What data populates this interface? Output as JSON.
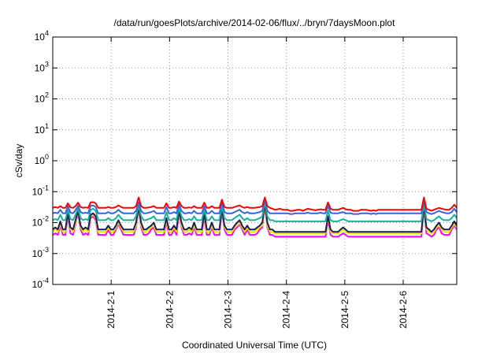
{
  "chart_data": {
    "type": "line",
    "title": "/data/run/goesPlots/archive/2014-02-06/flux/../bryn/7daysMoon.plot",
    "xlabel": "Coordinated Universal Time (UTC)",
    "ylabel": "cSv/day",
    "yscale": "log",
    "ylim": [
      0.0001,
      10000
    ],
    "xlim": [
      "2014-01-31T00:00",
      "2014-02-06T22:00"
    ],
    "grid": true,
    "y_ticks": [
      {
        "base": "10",
        "exp": "-4",
        "value": 0.0001
      },
      {
        "base": "10",
        "exp": "-3",
        "value": 0.001
      },
      {
        "base": "10",
        "exp": "-2",
        "value": 0.01
      },
      {
        "base": "10",
        "exp": "-1",
        "value": 0.1
      },
      {
        "base": "10",
        "exp": "0",
        "value": 1
      },
      {
        "base": "10",
        "exp": "1",
        "value": 10
      },
      {
        "base": "10",
        "exp": "2",
        "value": 100
      },
      {
        "base": "10",
        "exp": "3",
        "value": 1000
      },
      {
        "base": "10",
        "exp": "4",
        "value": 10000
      }
    ],
    "x_ticks": [
      {
        "label": "2014-2-1",
        "value": "2014-02-01T00:00"
      },
      {
        "label": "2014-2-2",
        "value": "2014-02-02T00:00"
      },
      {
        "label": "2014-2-3",
        "value": "2014-02-03T00:00"
      },
      {
        "label": "2014-2-4",
        "value": "2014-02-04T00:00"
      },
      {
        "label": "2014-2-5",
        "value": "2014-02-05T00:00"
      },
      {
        "label": "2014-2-6",
        "value": "2014-02-06T00:00"
      }
    ],
    "series": [
      {
        "color": "#ff0000",
        "values": [
          0.03,
          0.032,
          0.03,
          0.034,
          0.03,
          0.03,
          0.042,
          0.031,
          0.03,
          0.034,
          0.044,
          0.032,
          0.03,
          0.031,
          0.03,
          0.045,
          0.046,
          0.042,
          0.03,
          0.03,
          0.03,
          0.03,
          0.032,
          0.03,
          0.03,
          0.032,
          0.036,
          0.032,
          0.03,
          0.03,
          0.03,
          0.03,
          0.03,
          0.034,
          0.065,
          0.034,
          0.03,
          0.03,
          0.031,
          0.032,
          0.034,
          0.03,
          0.03,
          0.03,
          0.03,
          0.042,
          0.03,
          0.03,
          0.032,
          0.03,
          0.048,
          0.034,
          0.03,
          0.03,
          0.031,
          0.03,
          0.034,
          0.03,
          0.03,
          0.03,
          0.044,
          0.03,
          0.03,
          0.034,
          0.03,
          0.03,
          0.03,
          0.055,
          0.032,
          0.03,
          0.03,
          0.03,
          0.032,
          0.034,
          0.036,
          0.032,
          0.03,
          0.032,
          0.03,
          0.03,
          0.03,
          0.031,
          0.032,
          0.034,
          0.065,
          0.034,
          0.03,
          0.028,
          0.026,
          0.027,
          0.028,
          0.026,
          0.026,
          0.026,
          0.024,
          0.024,
          0.025,
          0.026,
          0.026,
          0.024,
          0.026,
          0.028,
          0.027,
          0.026,
          0.025,
          0.026,
          0.027,
          0.026,
          0.026,
          0.045,
          0.028,
          0.026,
          0.026,
          0.026,
          0.028,
          0.03,
          0.027,
          0.026,
          0.026,
          0.024,
          0.024,
          0.024,
          0.026,
          0.026,
          0.026,
          0.025,
          0.024,
          0.025,
          0.024,
          0.026,
          0.026,
          0.026,
          0.026,
          0.026,
          0.026,
          0.026,
          0.026,
          0.026,
          0.026,
          0.026,
          0.026,
          0.026,
          0.026,
          0.026,
          0.026,
          0.026,
          0.026,
          0.065,
          0.028,
          0.026,
          0.024,
          0.026,
          0.028,
          0.03,
          0.028,
          0.027,
          0.026,
          0.026,
          0.03,
          0.038,
          0.03
        ]
      },
      {
        "color": "#3a64d8",
        "values": [
          0.02,
          0.021,
          0.02,
          0.026,
          0.02,
          0.02,
          0.034,
          0.021,
          0.02,
          0.025,
          0.035,
          0.022,
          0.02,
          0.021,
          0.02,
          0.035,
          0.036,
          0.032,
          0.02,
          0.02,
          0.02,
          0.02,
          0.022,
          0.02,
          0.02,
          0.022,
          0.026,
          0.022,
          0.02,
          0.02,
          0.02,
          0.02,
          0.02,
          0.024,
          0.045,
          0.024,
          0.02,
          0.02,
          0.021,
          0.022,
          0.024,
          0.02,
          0.02,
          0.02,
          0.02,
          0.032,
          0.02,
          0.02,
          0.022,
          0.02,
          0.038,
          0.024,
          0.02,
          0.02,
          0.021,
          0.02,
          0.024,
          0.02,
          0.02,
          0.02,
          0.034,
          0.02,
          0.02,
          0.024,
          0.02,
          0.02,
          0.02,
          0.045,
          0.022,
          0.02,
          0.02,
          0.02,
          0.022,
          0.024,
          0.026,
          0.022,
          0.02,
          0.022,
          0.02,
          0.02,
          0.02,
          0.021,
          0.022,
          0.024,
          0.055,
          0.024,
          0.02,
          0.02,
          0.02,
          0.02,
          0.02,
          0.02,
          0.02,
          0.02,
          0.019,
          0.019,
          0.02,
          0.02,
          0.02,
          0.02,
          0.02,
          0.021,
          0.02,
          0.02,
          0.02,
          0.02,
          0.021,
          0.02,
          0.02,
          0.034,
          0.021,
          0.02,
          0.02,
          0.02,
          0.021,
          0.022,
          0.02,
          0.02,
          0.02,
          0.019,
          0.019,
          0.019,
          0.02,
          0.02,
          0.02,
          0.02,
          0.019,
          0.02,
          0.019,
          0.02,
          0.02,
          0.02,
          0.02,
          0.02,
          0.02,
          0.02,
          0.02,
          0.02,
          0.02,
          0.02,
          0.02,
          0.02,
          0.02,
          0.02,
          0.02,
          0.02,
          0.02,
          0.05,
          0.022,
          0.02,
          0.019,
          0.02,
          0.022,
          0.024,
          0.022,
          0.021,
          0.02,
          0.02,
          0.022,
          0.028,
          0.022
        ]
      },
      {
        "color": "#14b29a",
        "values": [
          0.012,
          0.013,
          0.012,
          0.018,
          0.012,
          0.012,
          0.026,
          0.013,
          0.012,
          0.018,
          0.028,
          0.014,
          0.012,
          0.013,
          0.012,
          0.026,
          0.028,
          0.024,
          0.012,
          0.012,
          0.012,
          0.012,
          0.014,
          0.012,
          0.012,
          0.014,
          0.018,
          0.014,
          0.012,
          0.012,
          0.012,
          0.012,
          0.012,
          0.016,
          0.036,
          0.016,
          0.012,
          0.012,
          0.013,
          0.014,
          0.016,
          0.012,
          0.012,
          0.012,
          0.012,
          0.022,
          0.012,
          0.012,
          0.014,
          0.012,
          0.03,
          0.016,
          0.012,
          0.012,
          0.013,
          0.012,
          0.016,
          0.012,
          0.012,
          0.012,
          0.026,
          0.012,
          0.012,
          0.016,
          0.012,
          0.012,
          0.012,
          0.034,
          0.014,
          0.012,
          0.012,
          0.012,
          0.014,
          0.016,
          0.018,
          0.014,
          0.012,
          0.014,
          0.012,
          0.012,
          0.012,
          0.013,
          0.014,
          0.016,
          0.045,
          0.016,
          0.012,
          0.012,
          0.011,
          0.011,
          0.011,
          0.011,
          0.011,
          0.011,
          0.011,
          0.011,
          0.011,
          0.011,
          0.011,
          0.011,
          0.011,
          0.011,
          0.011,
          0.011,
          0.011,
          0.011,
          0.011,
          0.011,
          0.011,
          0.024,
          0.012,
          0.011,
          0.011,
          0.011,
          0.012,
          0.013,
          0.012,
          0.011,
          0.011,
          0.011,
          0.011,
          0.011,
          0.011,
          0.011,
          0.011,
          0.011,
          0.011,
          0.011,
          0.011,
          0.011,
          0.011,
          0.011,
          0.011,
          0.011,
          0.011,
          0.011,
          0.011,
          0.011,
          0.011,
          0.011,
          0.011,
          0.011,
          0.011,
          0.011,
          0.011,
          0.011,
          0.011,
          0.04,
          0.013,
          0.012,
          0.011,
          0.012,
          0.014,
          0.016,
          0.013,
          0.012,
          0.012,
          0.012,
          0.014,
          0.018,
          0.014
        ]
      },
      {
        "color": "#1c1c5a",
        "values": [
          0.006,
          0.007,
          0.006,
          0.011,
          0.006,
          0.006,
          0.02,
          0.007,
          0.006,
          0.012,
          0.024,
          0.008,
          0.006,
          0.007,
          0.006,
          0.018,
          0.02,
          0.016,
          0.006,
          0.006,
          0.006,
          0.006,
          0.008,
          0.006,
          0.006,
          0.008,
          0.012,
          0.008,
          0.006,
          0.006,
          0.006,
          0.006,
          0.006,
          0.01,
          0.032,
          0.01,
          0.006,
          0.006,
          0.007,
          0.008,
          0.01,
          0.006,
          0.006,
          0.006,
          0.006,
          0.014,
          0.006,
          0.006,
          0.008,
          0.006,
          0.024,
          0.01,
          0.006,
          0.006,
          0.007,
          0.006,
          0.01,
          0.006,
          0.006,
          0.006,
          0.02,
          0.006,
          0.006,
          0.01,
          0.006,
          0.006,
          0.006,
          0.028,
          0.008,
          0.006,
          0.006,
          0.006,
          0.008,
          0.01,
          0.012,
          0.008,
          0.006,
          0.008,
          0.006,
          0.006,
          0.006,
          0.007,
          0.008,
          0.01,
          0.04,
          0.01,
          0.006,
          0.006,
          0.005,
          0.005,
          0.005,
          0.005,
          0.005,
          0.005,
          0.005,
          0.005,
          0.005,
          0.005,
          0.005,
          0.005,
          0.005,
          0.005,
          0.005,
          0.005,
          0.005,
          0.005,
          0.005,
          0.005,
          0.005,
          0.016,
          0.006,
          0.005,
          0.005,
          0.005,
          0.006,
          0.007,
          0.006,
          0.005,
          0.005,
          0.005,
          0.005,
          0.005,
          0.005,
          0.005,
          0.005,
          0.005,
          0.005,
          0.005,
          0.005,
          0.005,
          0.005,
          0.005,
          0.005,
          0.005,
          0.005,
          0.005,
          0.005,
          0.005,
          0.005,
          0.005,
          0.005,
          0.005,
          0.005,
          0.005,
          0.005,
          0.005,
          0.005,
          0.035,
          0.007,
          0.006,
          0.005,
          0.006,
          0.008,
          0.01,
          0.007,
          0.006,
          0.006,
          0.006,
          0.008,
          0.011,
          0.008
        ]
      },
      {
        "color": "#e8e800",
        "values": [
          0.005,
          0.006,
          0.005,
          0.009,
          0.005,
          0.005,
          0.018,
          0.006,
          0.005,
          0.01,
          0.022,
          0.007,
          0.005,
          0.006,
          0.005,
          0.016,
          0.018,
          0.014,
          0.005,
          0.005,
          0.005,
          0.005,
          0.007,
          0.005,
          0.005,
          0.007,
          0.01,
          0.007,
          0.005,
          0.005,
          0.005,
          0.005,
          0.005,
          0.008,
          0.03,
          0.008,
          0.005,
          0.005,
          0.006,
          0.007,
          0.008,
          0.005,
          0.005,
          0.005,
          0.005,
          0.012,
          0.005,
          0.005,
          0.007,
          0.005,
          0.022,
          0.008,
          0.005,
          0.005,
          0.006,
          0.005,
          0.008,
          0.005,
          0.005,
          0.005,
          0.018,
          0.005,
          0.005,
          0.008,
          0.005,
          0.005,
          0.005,
          0.026,
          0.007,
          0.005,
          0.005,
          0.005,
          0.007,
          0.008,
          0.01,
          0.007,
          0.005,
          0.007,
          0.005,
          0.005,
          0.005,
          0.006,
          0.007,
          0.008,
          0.038,
          0.008,
          0.005,
          0.005,
          0.0045,
          0.0045,
          0.0045,
          0.0045,
          0.0045,
          0.0045,
          0.0045,
          0.0045,
          0.0045,
          0.0045,
          0.0045,
          0.0045,
          0.0045,
          0.0045,
          0.0045,
          0.0045,
          0.0045,
          0.0045,
          0.0045,
          0.0045,
          0.0045,
          0.014,
          0.005,
          0.0045,
          0.0045,
          0.0045,
          0.005,
          0.006,
          0.005,
          0.0045,
          0.0045,
          0.0045,
          0.0045,
          0.0045,
          0.0045,
          0.0045,
          0.0045,
          0.0045,
          0.0045,
          0.0045,
          0.0045,
          0.0045,
          0.0045,
          0.0045,
          0.0045,
          0.0045,
          0.0045,
          0.0045,
          0.0045,
          0.0045,
          0.0045,
          0.0045,
          0.0045,
          0.0045,
          0.0045,
          0.0045,
          0.0045,
          0.0045,
          0.0045,
          0.032,
          0.006,
          0.005,
          0.0045,
          0.005,
          0.007,
          0.008,
          0.006,
          0.005,
          0.005,
          0.005,
          0.007,
          0.009,
          0.007
        ]
      },
      {
        "color": "#ff00ff",
        "values": [
          0.004,
          0.0045,
          0.004,
          0.008,
          0.004,
          0.004,
          0.016,
          0.0045,
          0.004,
          0.009,
          0.02,
          0.006,
          0.004,
          0.0045,
          0.004,
          0.014,
          0.016,
          0.012,
          0.004,
          0.004,
          0.004,
          0.004,
          0.006,
          0.004,
          0.004,
          0.006,
          0.009,
          0.006,
          0.004,
          0.004,
          0.004,
          0.004,
          0.004,
          0.007,
          0.028,
          0.007,
          0.004,
          0.004,
          0.0045,
          0.006,
          0.007,
          0.004,
          0.004,
          0.004,
          0.004,
          0.011,
          0.004,
          0.004,
          0.006,
          0.004,
          0.02,
          0.007,
          0.004,
          0.004,
          0.0045,
          0.004,
          0.007,
          0.004,
          0.004,
          0.004,
          0.016,
          0.004,
          0.004,
          0.007,
          0.004,
          0.004,
          0.004,
          0.024,
          0.006,
          0.004,
          0.004,
          0.004,
          0.006,
          0.007,
          0.009,
          0.006,
          0.004,
          0.006,
          0.004,
          0.004,
          0.004,
          0.0045,
          0.006,
          0.007,
          0.036,
          0.007,
          0.004,
          0.004,
          0.0035,
          0.0035,
          0.0035,
          0.0035,
          0.0035,
          0.0035,
          0.0035,
          0.0035,
          0.0035,
          0.0035,
          0.0035,
          0.0035,
          0.0035,
          0.0035,
          0.0035,
          0.0035,
          0.0035,
          0.0035,
          0.0035,
          0.0035,
          0.0035,
          0.012,
          0.004,
          0.0035,
          0.0035,
          0.0035,
          0.004,
          0.0045,
          0.004,
          0.0035,
          0.0035,
          0.0035,
          0.0035,
          0.0035,
          0.0035,
          0.0035,
          0.0035,
          0.0035,
          0.0035,
          0.0035,
          0.0035,
          0.0035,
          0.0035,
          0.0035,
          0.0035,
          0.0035,
          0.0035,
          0.0035,
          0.0035,
          0.0035,
          0.0035,
          0.0035,
          0.0035,
          0.0035,
          0.0035,
          0.0035,
          0.0035,
          0.0035,
          0.0035,
          0.03,
          0.0045,
          0.004,
          0.0035,
          0.004,
          0.006,
          0.007,
          0.0045,
          0.004,
          0.004,
          0.004,
          0.006,
          0.008,
          0.006
        ]
      }
    ]
  }
}
